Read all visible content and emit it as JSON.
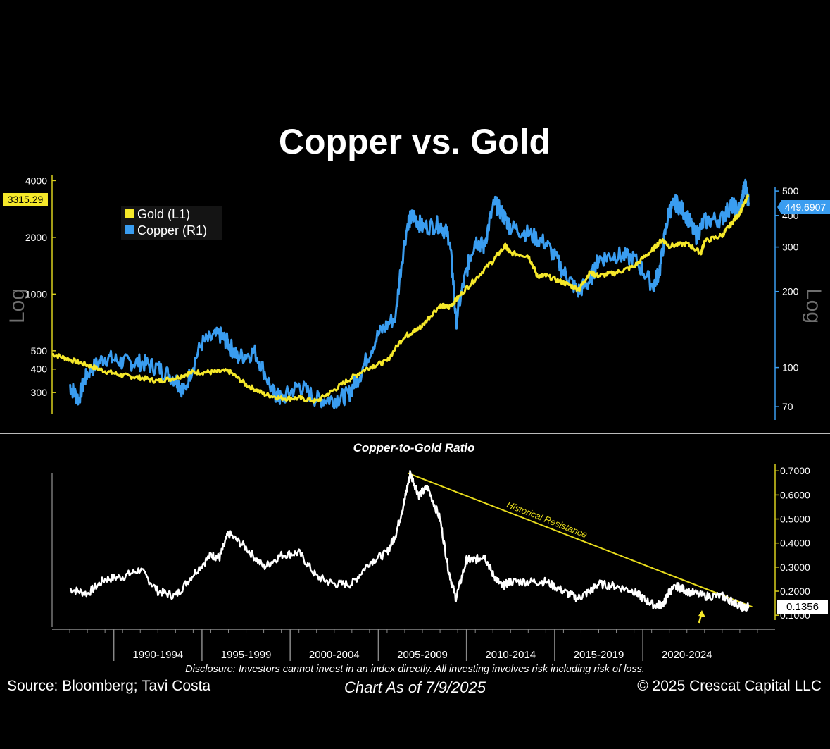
{
  "title": "Copper vs. Gold",
  "colors": {
    "background": "#000000",
    "gold": "#f5e82a",
    "copper": "#3a9df0",
    "ratio": "#ffffff",
    "axis_gold": "#d9cf1e",
    "axis_copper": "#3a9df0",
    "resistance": "#e8dc1c"
  },
  "footer": {
    "source": "Source: Bloomberg; Tavi Costa",
    "as_of": "Chart As of 7/9/2025",
    "copyright": "© 2025 Crescat Capital LLC",
    "disclosure": "Disclosure: Investors cannot invest in an index directly. All investing involves risk including risk of loss."
  },
  "chart_data": [
    {
      "type": "line",
      "title": "Copper vs. Gold",
      "scale": "log",
      "left_axis": {
        "label": "Log",
        "ticks": [
          300,
          400,
          500,
          1000,
          2000,
          4000
        ],
        "tick_labels": [
          "300",
          "400",
          "500",
          "1000",
          "2000",
          "4000"
        ],
        "range": [
          230,
          4300
        ],
        "last_value_label": "3315.29"
      },
      "right_axis": {
        "label": "Log",
        "ticks": [
          70,
          100,
          200,
          300,
          400,
          500
        ],
        "tick_labels": [
          "70",
          "100",
          "200",
          "300",
          "400",
          "500"
        ],
        "range": [
          62,
          520
        ],
        "last_value_label": "449.6907"
      },
      "legend": {
        "position": "top-left",
        "entries": [
          "Gold (L1)",
          "Copper (R1)"
        ]
      },
      "x_range": [
        1986.0,
        2027.0
      ],
      "series": [
        {
          "name": "Gold (L1)",
          "axis": "left",
          "x": [
            1986.0,
            1987.0,
            1988.0,
            1989.0,
            1990.0,
            1991.0,
            1992.0,
            1993.0,
            1994.0,
            1995.0,
            1996.0,
            1997.0,
            1998.0,
            1999.0,
            2000.0,
            2001.0,
            2002.0,
            2003.0,
            2004.0,
            2005.0,
            2006.0,
            2006.5,
            2007.0,
            2008.0,
            2008.5,
            2009.0,
            2010.0,
            2011.0,
            2011.7,
            2012.0,
            2013.0,
            2013.5,
            2014.0,
            2015.0,
            2015.9,
            2016.5,
            2017.0,
            2018.0,
            2019.0,
            2020.0,
            2020.6,
            2021.0,
            2022.0,
            2022.8,
            2023.0,
            2024.0,
            2024.5,
            2025.0,
            2025.5
          ],
          "values": [
            480,
            450,
            420,
            390,
            370,
            360,
            345,
            360,
            385,
            385,
            390,
            330,
            295,
            280,
            280,
            270,
            310,
            360,
            410,
            440,
            600,
            630,
            680,
            870,
            850,
            950,
            1200,
            1500,
            1800,
            1650,
            1600,
            1250,
            1250,
            1150,
            1060,
            1300,
            1250,
            1300,
            1400,
            1700,
            1950,
            1800,
            1850,
            1650,
            1900,
            2050,
            2350,
            2700,
            3320
          ]
        },
        {
          "name": "Copper (R1)",
          "axis": "right",
          "x": [
            1987.0,
            1987.5,
            1988.0,
            1989.0,
            1990.0,
            1991.0,
            1992.0,
            1993.0,
            1993.5,
            1994.5,
            1995.5,
            1996.0,
            1996.5,
            1997.5,
            1998.5,
            1999.0,
            2000.0,
            2001.0,
            2002.0,
            2002.8,
            2003.5,
            2004.5,
            2005.5,
            2006.2,
            2006.5,
            2007.0,
            2008.0,
            2008.5,
            2008.9,
            2009.5,
            2010.0,
            2010.5,
            2011.1,
            2011.6,
            2012.0,
            2013.0,
            2014.0,
            2015.0,
            2015.8,
            2016.5,
            2017.0,
            2018.0,
            2019.0,
            2020.1,
            2020.5,
            2021.0,
            2021.4,
            2022.0,
            2022.5,
            2023.0,
            2024.0,
            2024.5,
            2025.0,
            2025.3,
            2025.5
          ],
          "values": [
            85,
            75,
            95,
            110,
            105,
            105,
            100,
            90,
            80,
            125,
            135,
            125,
            110,
            115,
            80,
            75,
            85,
            75,
            75,
            78,
            95,
            135,
            160,
            380,
            400,
            360,
            370,
            330,
            150,
            240,
            320,
            300,
            450,
            400,
            360,
            340,
            310,
            240,
            200,
            220,
            270,
            280,
            270,
            210,
            250,
            420,
            450,
            400,
            330,
            380,
            390,
            440,
            420,
            530,
            450
          ]
        }
      ]
    },
    {
      "type": "line",
      "title": "Copper-to-Gold Ratio",
      "right_axis": {
        "ticks": [
          0.1,
          0.2,
          0.3,
          0.4,
          0.5,
          0.6,
          0.7
        ],
        "tick_labels": [
          "0.1000",
          "0.2000",
          "0.3000",
          "0.4000",
          "0.5000",
          "0.6000",
          "0.7000"
        ],
        "range": [
          0.08,
          0.73
        ],
        "last_value_label": "0.1356"
      },
      "x_ticks": [
        "1990-1994",
        "1995-1999",
        "2000-2004",
        "2005-2009",
        "2010-2014",
        "2015-2019",
        "2020-2024"
      ],
      "annotation": "Historical Resistance",
      "resistance_line": {
        "x": [
          2006.2,
          2025.7
        ],
        "values": [
          0.69,
          0.135
        ]
      },
      "series": [
        {
          "name": "Copper-to-Gold Ratio",
          "x": [
            1987.0,
            1988.0,
            1989.0,
            1990.0,
            1991.0,
            1992.0,
            1993.0,
            1994.0,
            1995.0,
            1995.5,
            1996.0,
            1997.0,
            1998.0,
            1999.0,
            2000.0,
            2001.0,
            2002.0,
            2003.0,
            2004.0,
            2005.0,
            2005.5,
            2006.0,
            2006.3,
            2006.8,
            2007.3,
            2008.0,
            2008.5,
            2008.9,
            2009.5,
            2010.0,
            2010.5,
            2011.0,
            2011.5,
            2012.0,
            2013.0,
            2014.0,
            2015.0,
            2015.8,
            2016.5,
            2017.0,
            2018.0,
            2019.0,
            2019.5,
            2020.2,
            2020.7,
            2021.0,
            2021.5,
            2022.0,
            2023.0,
            2024.0,
            2024.5,
            2025.0,
            2025.3,
            2025.5
          ],
          "values": [
            0.21,
            0.19,
            0.25,
            0.26,
            0.29,
            0.2,
            0.18,
            0.27,
            0.35,
            0.34,
            0.44,
            0.38,
            0.3,
            0.35,
            0.36,
            0.26,
            0.23,
            0.23,
            0.32,
            0.36,
            0.44,
            0.58,
            0.69,
            0.6,
            0.63,
            0.5,
            0.28,
            0.17,
            0.33,
            0.33,
            0.35,
            0.27,
            0.22,
            0.24,
            0.24,
            0.24,
            0.2,
            0.17,
            0.2,
            0.23,
            0.22,
            0.2,
            0.17,
            0.14,
            0.15,
            0.2,
            0.22,
            0.2,
            0.18,
            0.18,
            0.16,
            0.14,
            0.13,
            0.136
          ]
        }
      ]
    }
  ]
}
